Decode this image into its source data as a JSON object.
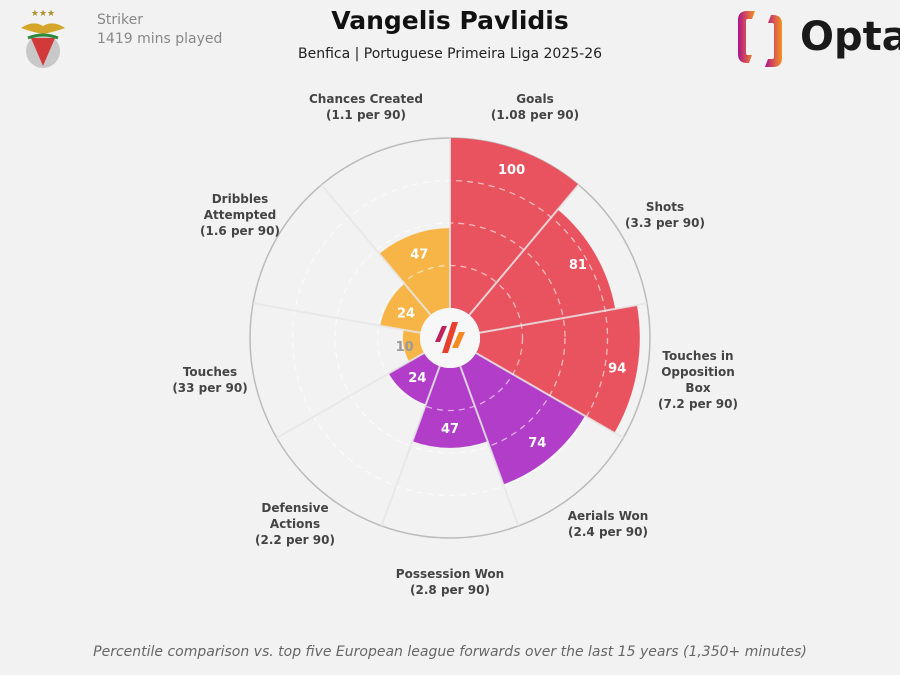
{
  "header": {
    "title": "Vangelis Pavlidis",
    "subtitle": "Benfica | Portuguese Primeira Liga 2025-26",
    "position": "Striker",
    "minutes": "1419 mins played"
  },
  "brand": {
    "name": "Opta"
  },
  "footnote": "Percentile comparison vs. top five European league forwards over the last 15 years (1,350+ minutes)",
  "chart_data": {
    "type": "polar-bar",
    "range": [
      0,
      100
    ],
    "gridlines": [
      25,
      50,
      75
    ],
    "categories": [
      {
        "name": "Goals",
        "stat": "(1.08 per 90)",
        "value": 100,
        "group": "attacking"
      },
      {
        "name": "Shots",
        "stat": "(3.3 per 90)",
        "value": 81,
        "group": "attacking"
      },
      {
        "name": "Touches in Opposition Box",
        "stat": "(7.2 per 90)",
        "value": 94,
        "group": "attacking"
      },
      {
        "name": "Aerials Won",
        "stat": "(2.4 per 90)",
        "value": 74,
        "group": "defending"
      },
      {
        "name": "Possession Won",
        "stat": "(2.8 per 90)",
        "value": 47,
        "group": "defending"
      },
      {
        "name": "Defensive Actions",
        "stat": "(2.2 per 90)",
        "value": 24,
        "group": "defending"
      },
      {
        "name": "Touches",
        "stat": "(33 per 90)",
        "value": 10,
        "group": "possession"
      },
      {
        "name": "Dribbles Attempted",
        "stat": "(1.6 per 90)",
        "value": 24,
        "group": "possession"
      },
      {
        "name": "Chances Created",
        "stat": "(1.1 per 90)",
        "value": 47,
        "group": "possession"
      }
    ],
    "colors": {
      "attacking": "#e9535f",
      "defending": "#b13dc9",
      "possession": "#f6b546"
    }
  }
}
